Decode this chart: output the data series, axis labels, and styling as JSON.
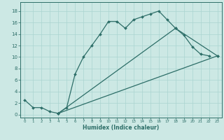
{
  "xlabel": "Humidex (Indice chaleur)",
  "bg_color": "#cce8e4",
  "grid_color": "#aad4d0",
  "line_color": "#2d6e68",
  "xlim": [
    -0.5,
    23.5
  ],
  "ylim": [
    -0.5,
    19.5
  ],
  "xticks": [
    0,
    1,
    2,
    3,
    4,
    5,
    6,
    7,
    8,
    9,
    10,
    11,
    12,
    13,
    14,
    15,
    16,
    17,
    18,
    19,
    20,
    21,
    22,
    23
  ],
  "yticks": [
    0,
    2,
    4,
    6,
    8,
    10,
    12,
    14,
    16,
    18
  ],
  "line1_x": [
    0,
    1,
    2,
    3,
    4,
    5,
    6,
    7,
    8,
    9,
    10,
    11,
    12,
    13,
    14,
    15,
    16,
    17,
    18,
    19,
    20,
    21,
    22
  ],
  "line1_y": [
    2.5,
    1.2,
    1.2,
    0.5,
    0.2,
    1.2,
    7.0,
    10.0,
    12.0,
    14.0,
    16.2,
    16.2,
    15.0,
    16.5,
    17.0,
    17.5,
    18.0,
    16.5,
    15.0,
    13.8,
    11.8,
    10.5,
    10.2
  ],
  "line2_x": [
    4,
    23
  ],
  "line2_y": [
    0.2,
    10.2
  ],
  "line3_x": [
    4,
    18,
    23
  ],
  "line3_y": [
    0.2,
    15.0,
    10.2
  ]
}
